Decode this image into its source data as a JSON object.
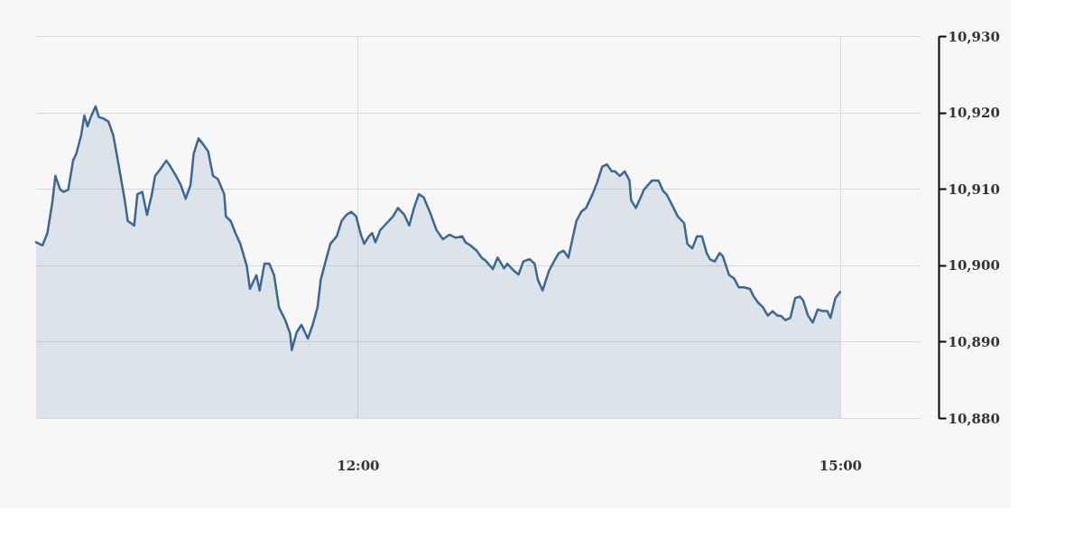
{
  "chart_data": {
    "type": "area",
    "x": [
      10.0,
      10.04,
      10.07,
      10.1,
      10.12,
      10.15,
      10.17,
      10.2,
      10.23,
      10.25,
      10.28,
      10.3,
      10.32,
      10.34,
      10.37,
      10.39,
      10.42,
      10.45,
      10.48,
      10.51,
      10.55,
      10.57,
      10.61,
      10.63,
      10.66,
      10.69,
      10.72,
      10.74,
      10.77,
      10.81,
      10.83,
      10.87,
      10.9,
      10.93,
      10.96,
      10.98,
      11.01,
      11.04,
      11.07,
      11.1,
      11.13,
      11.17,
      11.18,
      11.21,
      11.24,
      11.27,
      11.31,
      11.33,
      11.37,
      11.39,
      11.42,
      11.45,
      11.48,
      11.51,
      11.55,
      11.58,
      11.59,
      11.62,
      11.65,
      11.69,
      11.72,
      11.75,
      11.77,
      11.8,
      11.83,
      11.87,
      11.9,
      11.93,
      11.96,
      11.99,
      12.02,
      12.04,
      12.07,
      12.09,
      12.11,
      12.14,
      12.18,
      12.22,
      12.25,
      12.29,
      12.32,
      12.35,
      12.38,
      12.41,
      12.45,
      12.49,
      12.53,
      12.57,
      12.61,
      12.65,
      12.67,
      12.7,
      12.74,
      12.77,
      12.8,
      12.84,
      12.87,
      12.91,
      12.93,
      12.97,
      13.0,
      13.03,
      13.07,
      13.1,
      13.12,
      13.15,
      13.19,
      13.22,
      13.25,
      13.28,
      13.31,
      13.36,
      13.39,
      13.42,
      13.46,
      13.49,
      13.52,
      13.55,
      13.58,
      13.6,
      13.63,
      13.66,
      13.69,
      13.7,
      13.73,
      13.76,
      13.78,
      13.83,
      13.87,
      13.9,
      13.92,
      13.95,
      13.99,
      14.03,
      14.05,
      14.08,
      14.11,
      14.14,
      14.17,
      14.19,
      14.22,
      14.25,
      14.27,
      14.31,
      14.34,
      14.37,
      14.4,
      14.44,
      14.46,
      14.49,
      14.52,
      14.55,
      14.58,
      14.61,
      14.63,
      14.66,
      14.69,
      14.72,
      14.75,
      14.77,
      14.8,
      14.83,
      14.86,
      14.89,
      14.92,
      14.94,
      14.97,
      15.0
    ],
    "series": [
      {
        "color": "#3a6795",
        "values": [
          10903.0,
          10902.6,
          10904.2,
          10908.1,
          10911.7,
          10909.9,
          10909.6,
          10909.9,
          10913.7,
          10914.6,
          10917.0,
          10919.6,
          10918.2,
          10919.4,
          10920.8,
          10919.4,
          10919.2,
          10918.8,
          10917.0,
          10913.5,
          10908.7,
          10905.8,
          10905.2,
          10909.3,
          10909.6,
          10906.6,
          10909.3,
          10911.7,
          10912.5,
          10913.7,
          10913.1,
          10911.7,
          10910.5,
          10908.7,
          10910.5,
          10914.6,
          10916.6,
          10915.8,
          10914.9,
          10911.7,
          10911.3,
          10909.3,
          10906.4,
          10905.8,
          10904.2,
          10902.8,
          10899.9,
          10896.9,
          10898.7,
          10896.7,
          10900.2,
          10900.2,
          10898.7,
          10894.5,
          10892.8,
          10891.0,
          10888.9,
          10891.2,
          10892.2,
          10890.4,
          10892.2,
          10894.5,
          10898.1,
          10900.5,
          10902.8,
          10903.8,
          10905.8,
          10906.6,
          10907.0,
          10906.4,
          10904.0,
          10902.8,
          10903.8,
          10904.2,
          10903.0,
          10904.6,
          10905.5,
          10906.4,
          10907.5,
          10906.6,
          10905.2,
          10907.5,
          10909.3,
          10908.9,
          10906.9,
          10904.6,
          10903.4,
          10904.0,
          10903.6,
          10903.8,
          10903.0,
          10902.6,
          10901.9,
          10901.0,
          10900.5,
          10899.5,
          10901.0,
          10899.6,
          10900.2,
          10899.3,
          10898.8,
          10900.5,
          10900.8,
          10900.2,
          10898.1,
          10896.7,
          10899.3,
          10900.5,
          10901.6,
          10901.9,
          10901.0,
          10905.8,
          10907.0,
          10907.5,
          10909.3,
          10910.9,
          10912.9,
          10913.2,
          10912.3,
          10912.3,
          10911.7,
          10912.3,
          10911.1,
          10908.5,
          10907.5,
          10908.9,
          10909.9,
          10911.1,
          10911.1,
          10909.7,
          10909.3,
          10908.1,
          10906.4,
          10905.5,
          10902.8,
          10902.2,
          10903.8,
          10903.8,
          10901.6,
          10900.8,
          10900.5,
          10901.6,
          10901.2,
          10898.7,
          10898.3,
          10897.1,
          10897.1,
          10896.9,
          10896.0,
          10895.1,
          10894.5,
          10893.4,
          10894.0,
          10893.4,
          10893.4,
          10892.8,
          10893.1,
          10895.7,
          10895.9,
          10895.4,
          10893.4,
          10892.5,
          10894.2,
          10894.0,
          10894.0,
          10893.1,
          10895.7,
          10896.5
        ]
      }
    ],
    "xlim": [
      10,
      15.5
    ],
    "xticks": [
      {
        "value": 12,
        "label": "12:00"
      },
      {
        "value": 15,
        "label": "15:00"
      }
    ],
    "ylim": [
      10880,
      10930
    ],
    "yticks": [
      {
        "value": 10880,
        "label": "10,880"
      },
      {
        "value": 10890,
        "label": "10,890"
      },
      {
        "value": 10900,
        "label": "10,900"
      },
      {
        "value": 10910,
        "label": "10,910"
      },
      {
        "value": 10920,
        "label": "10,920"
      },
      {
        "value": 10930,
        "label": "10,930"
      }
    ],
    "grid": true,
    "line_style": "solid",
    "marker": "none"
  }
}
